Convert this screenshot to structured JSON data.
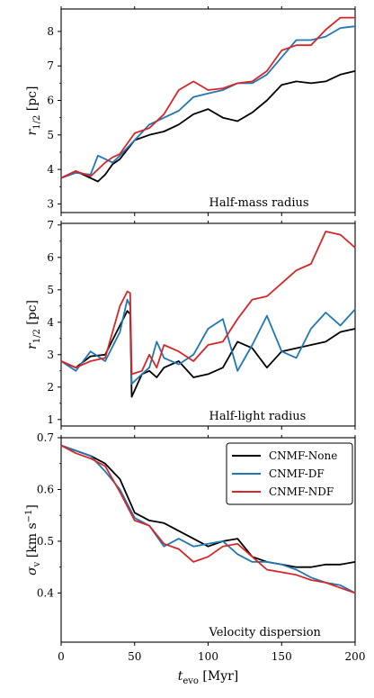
{
  "colors": {
    "CNMF-None": "#000000",
    "CNMF-DF": "#1f77b4",
    "CNMF-NDF": "#d62728"
  },
  "chart_data": [
    {
      "type": "line",
      "ylabel": "r_{1/2} [pc]",
      "ylabel_parts": {
        "main": "r",
        "sub": "1/2",
        "unit": " [pc]"
      },
      "annotation": "Half-mass radius",
      "xlim": [
        0,
        200
      ],
      "ylim": [
        2.75,
        8.65
      ],
      "yticks": [
        3,
        4,
        5,
        6,
        7,
        8
      ],
      "xticks": [
        0,
        50,
        100,
        150,
        200
      ],
      "x": [
        0,
        10,
        20,
        25,
        30,
        35,
        40,
        50,
        60,
        70,
        80,
        90,
        100,
        110,
        120,
        130,
        140,
        150,
        160,
        170,
        180,
        190,
        200
      ],
      "series": [
        {
          "name": "CNMF-None",
          "values": [
            3.75,
            3.95,
            3.75,
            3.65,
            3.85,
            4.15,
            4.3,
            4.85,
            5.0,
            5.1,
            5.3,
            5.6,
            5.75,
            5.5,
            5.4,
            5.65,
            6.0,
            6.45,
            6.55,
            6.5,
            6.55,
            6.75,
            6.85
          ]
        },
        {
          "name": "CNMF-DF",
          "values": [
            3.75,
            3.9,
            3.85,
            4.4,
            4.3,
            4.2,
            4.4,
            4.85,
            5.3,
            5.5,
            5.7,
            6.1,
            6.2,
            6.3,
            6.5,
            6.5,
            6.75,
            7.25,
            7.75,
            7.75,
            7.85,
            8.1,
            8.15
          ]
        },
        {
          "name": "CNMF-NDF",
          "values": [
            3.75,
            3.95,
            3.8,
            4.0,
            4.2,
            4.35,
            4.45,
            5.05,
            5.2,
            5.6,
            6.3,
            6.55,
            6.3,
            6.35,
            6.5,
            6.55,
            6.85,
            7.45,
            7.6,
            7.6,
            8.05,
            8.4,
            8.4
          ]
        }
      ]
    },
    {
      "type": "line",
      "ylabel": "r_{1/2} [pc]",
      "ylabel_parts": {
        "main": "r",
        "sub": "1/2",
        "unit": " [pc]"
      },
      "annotation": "Half-light radius",
      "xlim": [
        0,
        200
      ],
      "ylim": [
        0.8,
        7.05
      ],
      "yticks": [
        1,
        2,
        3,
        4,
        5,
        6,
        7
      ],
      "xticks": [
        0,
        50,
        100,
        150,
        200
      ],
      "x": [
        0,
        10,
        20,
        30,
        40,
        45,
        47,
        48,
        55,
        60,
        65,
        70,
        80,
        90,
        100,
        110,
        120,
        130,
        140,
        150,
        160,
        170,
        180,
        190,
        200
      ],
      "series": [
        {
          "name": "CNMF-None",
          "values": [
            2.8,
            2.6,
            2.95,
            3.0,
            3.9,
            4.35,
            4.25,
            1.7,
            2.4,
            2.5,
            2.3,
            2.6,
            2.8,
            2.3,
            2.4,
            2.6,
            3.4,
            3.2,
            2.6,
            3.1,
            3.2,
            3.3,
            3.4,
            3.7,
            3.8
          ]
        },
        {
          "name": "CNMF-DF",
          "values": [
            2.8,
            2.5,
            3.1,
            2.8,
            3.7,
            4.7,
            4.5,
            2.1,
            2.4,
            2.6,
            3.4,
            2.9,
            2.7,
            3.0,
            3.8,
            4.1,
            2.5,
            3.3,
            4.2,
            3.1,
            2.9,
            3.8,
            4.3,
            3.9,
            4.4
          ]
        },
        {
          "name": "CNMF-NDF",
          "values": [
            2.8,
            2.6,
            2.8,
            2.9,
            4.5,
            4.95,
            4.9,
            2.4,
            2.5,
            3.0,
            2.6,
            3.3,
            3.1,
            2.8,
            3.3,
            3.4,
            4.1,
            4.7,
            4.8,
            5.2,
            5.6,
            5.8,
            6.8,
            6.7,
            6.3
          ]
        }
      ]
    },
    {
      "type": "line",
      "ylabel": "σ_v [km s^{-1}]",
      "ylabel_parts": {
        "main": "σ",
        "sub": "v",
        "unit": " [km s",
        "sup": "−1",
        "close": "]"
      },
      "xlabel": "t_evo [Myr]",
      "xlabel_parts": {
        "main": "t",
        "sub": "evo",
        "unit": " [Myr]"
      },
      "annotation": "Velocity dispersion",
      "xlim": [
        0,
        200
      ],
      "ylim": [
        0.305,
        0.7
      ],
      "yticks": [
        0.4,
        0.5,
        0.6,
        0.7
      ],
      "ytick_labels": [
        "0.4",
        "0.5",
        "0.6",
        "0.7"
      ],
      "xticks": [
        0,
        50,
        100,
        150,
        200
      ],
      "x": [
        0,
        10,
        20,
        30,
        40,
        50,
        60,
        70,
        80,
        90,
        100,
        110,
        120,
        130,
        140,
        150,
        160,
        170,
        180,
        190,
        200
      ],
      "series": [
        {
          "name": "CNMF-None",
          "values": [
            0.685,
            0.675,
            0.665,
            0.65,
            0.62,
            0.555,
            0.54,
            0.535,
            0.52,
            0.505,
            0.49,
            0.5,
            0.505,
            0.47,
            0.46,
            0.455,
            0.45,
            0.45,
            0.455,
            0.455,
            0.46
          ]
        },
        {
          "name": "CNMF-DF",
          "values": [
            0.685,
            0.675,
            0.665,
            0.635,
            0.6,
            0.545,
            0.53,
            0.49,
            0.505,
            0.49,
            0.495,
            0.5,
            0.475,
            0.46,
            0.46,
            0.455,
            0.445,
            0.43,
            0.42,
            0.415,
            0.4
          ]
        },
        {
          "name": "CNMF-NDF",
          "values": [
            0.685,
            0.67,
            0.66,
            0.645,
            0.595,
            0.54,
            0.53,
            0.495,
            0.485,
            0.46,
            0.47,
            0.49,
            0.495,
            0.47,
            0.445,
            0.44,
            0.435,
            0.425,
            0.42,
            0.41,
            0.4
          ]
        }
      ],
      "legend": {
        "placement": "top-right",
        "entries": [
          "CNMF-None",
          "CNMF-DF",
          "CNMF-NDF"
        ]
      }
    }
  ]
}
